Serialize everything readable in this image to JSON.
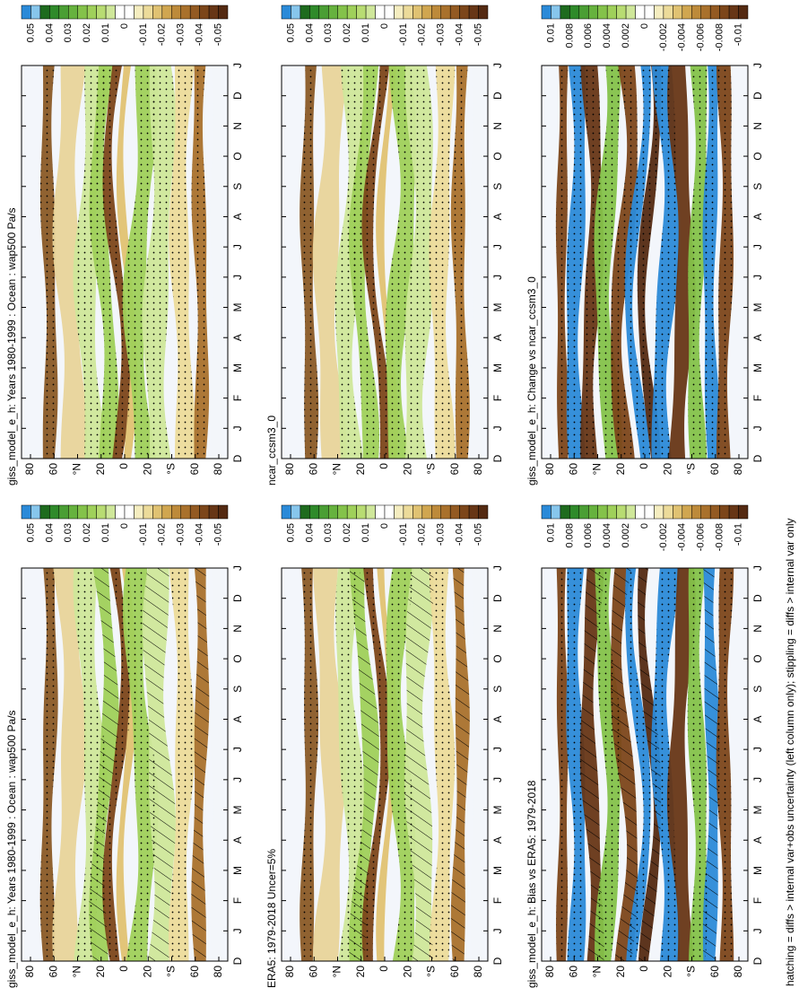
{
  "panels": [
    {
      "title": "giss_model_e_h: Years 1980-1999 : Ocean : wap500 Pa/s",
      "colorbar_labels": [
        "0.05",
        "0.04",
        "0.03",
        "0.02",
        "0.01",
        "0",
        "-0.01",
        "-0.02",
        "-0.03",
        "-0.04",
        "-0.05"
      ]
    },
    {
      "title": "ERA5: 1979-2018 Uncer=5%",
      "colorbar_labels": [
        "0.05",
        "0.04",
        "0.03",
        "0.02",
        "0.01",
        "0",
        "-0.01",
        "-0.02",
        "-0.03",
        "-0.04",
        "-0.05"
      ]
    },
    {
      "title": "giss_model_e_h: Bias vs ERA5: 1979-2018",
      "colorbar_labels": [
        "0.01",
        "0.008",
        "0.006",
        "0.004",
        "0.002",
        "0",
        "-0.002",
        "-0.004",
        "-0.006",
        "-0.008",
        "-0.01"
      ]
    },
    {
      "title": "giss_model_e_h: Years 1980-1999 : Ocean : wap500 Pa/s",
      "colorbar_labels": [
        "0.05",
        "0.04",
        "0.03",
        "0.02",
        "0.01",
        "0",
        "-0.01",
        "-0.02",
        "-0.03",
        "-0.04",
        "-0.05"
      ]
    },
    {
      "title": "ncar_ccsm3_0",
      "colorbar_labels": [
        "0.05",
        "0.04",
        "0.03",
        "0.02",
        "0.01",
        "0",
        "-0.01",
        "-0.02",
        "-0.03",
        "-0.04",
        "-0.05"
      ]
    },
    {
      "title": "giss_model_e_h: Change vs ncar_ccsm3_0",
      "colorbar_labels": [
        "0.01",
        "0.008",
        "0.006",
        "0.004",
        "0.002",
        "0",
        "-0.002",
        "-0.004",
        "-0.006",
        "-0.008",
        "-0.01"
      ]
    }
  ],
  "latitude_labels": [
    "80",
    "60",
    "°N",
    "20",
    "0",
    "20",
    "°S",
    "60",
    "80"
  ],
  "month_labels": [
    "D",
    "J",
    "F",
    "M",
    "A",
    "M",
    "J",
    "J",
    "A",
    "S",
    "O",
    "N",
    "D",
    "J"
  ],
  "footnote": "hatching = diffs > internal var+obs uncertainty (left column only); stippling = diffs > internal var only"
}
